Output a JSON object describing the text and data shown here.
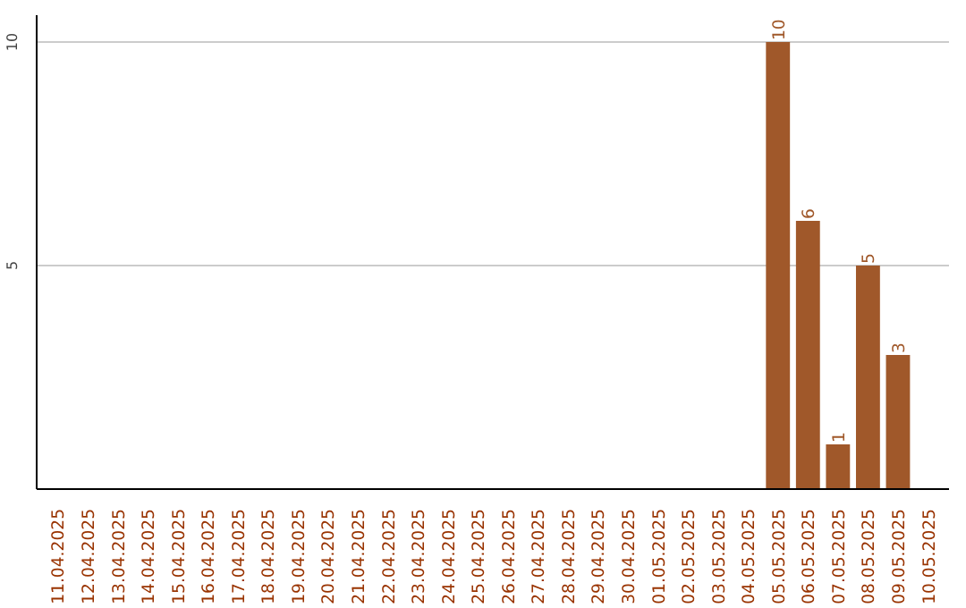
{
  "chart_data": {
    "type": "bar",
    "categories": [
      "11.04.2025",
      "12.04.2025",
      "13.04.2025",
      "14.04.2025",
      "15.04.2025",
      "16.04.2025",
      "17.04.2025",
      "18.04.2025",
      "19.04.2025",
      "20.04.2025",
      "21.04.2025",
      "22.04.2025",
      "23.04.2025",
      "24.04.2025",
      "25.04.2025",
      "26.04.2025",
      "27.04.2025",
      "28.04.2025",
      "29.04.2025",
      "30.04.2025",
      "01.05.2025",
      "02.05.2025",
      "03.05.2025",
      "04.05.2025",
      "05.05.2025",
      "06.05.2025",
      "07.05.2025",
      "08.05.2025",
      "09.05.2025",
      "10.05.2025"
    ],
    "values": [
      0,
      0,
      0,
      0,
      0,
      0,
      0,
      0,
      0,
      0,
      0,
      0,
      0,
      0,
      0,
      0,
      0,
      0,
      0,
      0,
      0,
      0,
      0,
      0,
      10,
      6,
      1,
      5,
      3,
      0
    ],
    "value_labels": [
      null,
      null,
      null,
      null,
      null,
      null,
      null,
      null,
      null,
      null,
      null,
      null,
      null,
      null,
      null,
      null,
      null,
      null,
      null,
      null,
      null,
      null,
      null,
      null,
      "10",
      "6",
      "1",
      "5",
      "3",
      null
    ],
    "color": "#a0582a",
    "ylim": [
      0,
      10.6
    ],
    "yticks": [
      5,
      10
    ],
    "grid": "y"
  }
}
